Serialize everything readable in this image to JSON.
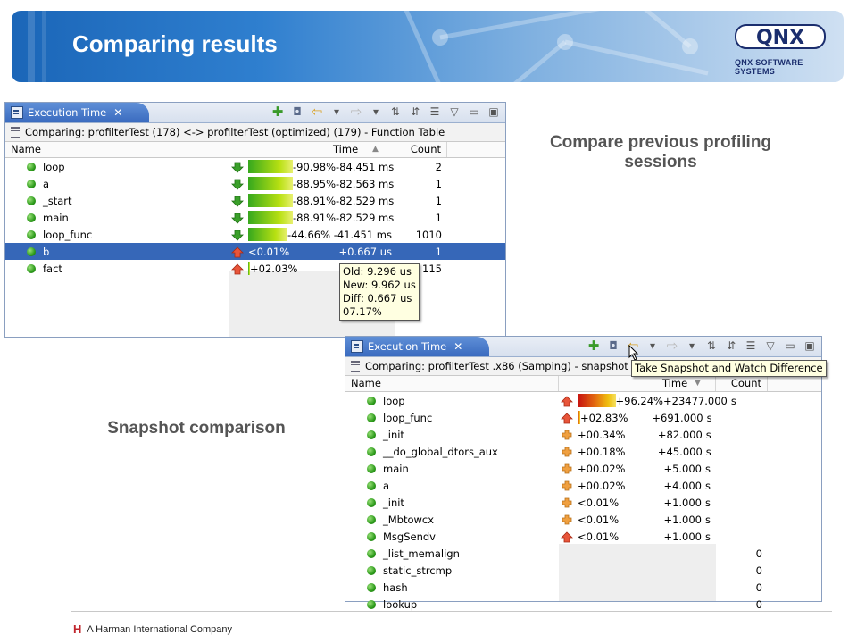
{
  "header": {
    "title": "Comparing results",
    "logo_text": "QNX",
    "logo_subtitle": "QNX SOFTWARE SYSTEMS"
  },
  "captions": {
    "compare": "Compare previous profiling sessions",
    "snapshot": "Snapshot comparison"
  },
  "window1": {
    "tab_title": "Execution Time",
    "tab_close": "✕",
    "subtitle": "Comparing: profilterTest (178) <-> profilterTest (optimized) (179) - Function Table",
    "columns": {
      "name": "Name",
      "time": "Time",
      "count": "Count"
    },
    "rows": [
      {
        "name": "loop",
        "dir": "down",
        "pct": "-90.98%",
        "bar": 0.91,
        "time": "-84.451 ms",
        "count": "2",
        "selected": false
      },
      {
        "name": "a",
        "dir": "down",
        "pct": "-88.95%",
        "bar": 0.89,
        "time": "-82.563 ms",
        "count": "1",
        "selected": false
      },
      {
        "name": "_start",
        "dir": "down",
        "pct": "-88.91%",
        "bar": 0.89,
        "time": "-82.529 ms",
        "count": "1",
        "selected": false
      },
      {
        "name": "main",
        "dir": "down",
        "pct": "-88.91%",
        "bar": 0.89,
        "time": "-82.529 ms",
        "count": "1",
        "selected": false
      },
      {
        "name": "loop_func",
        "dir": "down",
        "pct": "-44.66%",
        "bar": 0.45,
        "time": "-41.451 ms",
        "count": "1010",
        "selected": false
      },
      {
        "name": "b",
        "dir": "up",
        "pct": "<0.01%",
        "bar": 0,
        "time": "+0.667 us",
        "count": "1",
        "selected": true
      },
      {
        "name": "fact",
        "dir": "up",
        "pct": "+02.03%",
        "bar": 0.02,
        "time": "",
        "count": "115",
        "selected": false
      }
    ],
    "tooltip": [
      "Old: 9.296 us",
      "New: 9.962 us",
      "Diff: 0.667 us",
      "07.17%"
    ]
  },
  "window2": {
    "tab_title": "Execution Time",
    "tab_close": "✕",
    "subtitle": "Comparing: profilterTest .x86 (Samping) - snapshot o",
    "tooltip": "Take Snapshot and Watch Difference",
    "columns": {
      "name": "Name",
      "time": "Time",
      "count": "Count"
    },
    "rows": [
      {
        "name": "loop",
        "dir": "up",
        "pct": "+96.24%",
        "bar": 0.96,
        "time": "+23477.000",
        "unit": "s",
        "count": ""
      },
      {
        "name": "loop_func",
        "dir": "up",
        "pct": "+02.83%",
        "bar": 0.03,
        "time": "+691.000",
        "unit": "s",
        "count": ""
      },
      {
        "name": "_init",
        "dir": "plus",
        "pct": "+00.34%",
        "bar": 0,
        "time": "+82.000",
        "unit": "s",
        "count": ""
      },
      {
        "name": "__do_global_dtors_aux",
        "dir": "plus",
        "pct": "+00.18%",
        "bar": 0,
        "time": "+45.000",
        "unit": "s",
        "count": ""
      },
      {
        "name": "main",
        "dir": "plus",
        "pct": "+00.02%",
        "bar": 0,
        "time": "+5.000",
        "unit": "s",
        "count": ""
      },
      {
        "name": "a",
        "dir": "plus",
        "pct": "+00.02%",
        "bar": 0,
        "time": "+4.000",
        "unit": "s",
        "count": ""
      },
      {
        "name": "_init",
        "dir": "plus",
        "pct": "<0.01%",
        "bar": 0,
        "time": "+1.000",
        "unit": "s",
        "count": ""
      },
      {
        "name": "_Mbtowcx",
        "dir": "plus",
        "pct": "<0.01%",
        "bar": 0,
        "time": "+1.000",
        "unit": "s",
        "count": ""
      },
      {
        "name": "MsgSendv",
        "dir": "up",
        "pct": "<0.01%",
        "bar": 0,
        "time": "+1.000",
        "unit": "s",
        "count": ""
      },
      {
        "name": "_list_memalign",
        "dir": "none",
        "pct": "",
        "bar": 0,
        "time": "",
        "unit": "",
        "count": "0"
      },
      {
        "name": "static_strcmp",
        "dir": "none",
        "pct": "",
        "bar": 0,
        "time": "",
        "unit": "",
        "count": "0"
      },
      {
        "name": "hash",
        "dir": "none",
        "pct": "",
        "bar": 0,
        "time": "",
        "unit": "",
        "count": "0"
      },
      {
        "name": "lookup",
        "dir": "none",
        "pct": "",
        "bar": 0,
        "time": "",
        "unit": "",
        "count": "0"
      }
    ]
  },
  "footer": {
    "logo": "H",
    "text": "A Harman International Company"
  },
  "colors": {
    "banner": "#1b66b8",
    "selection": "#3667b8",
    "caption": "#555555"
  }
}
